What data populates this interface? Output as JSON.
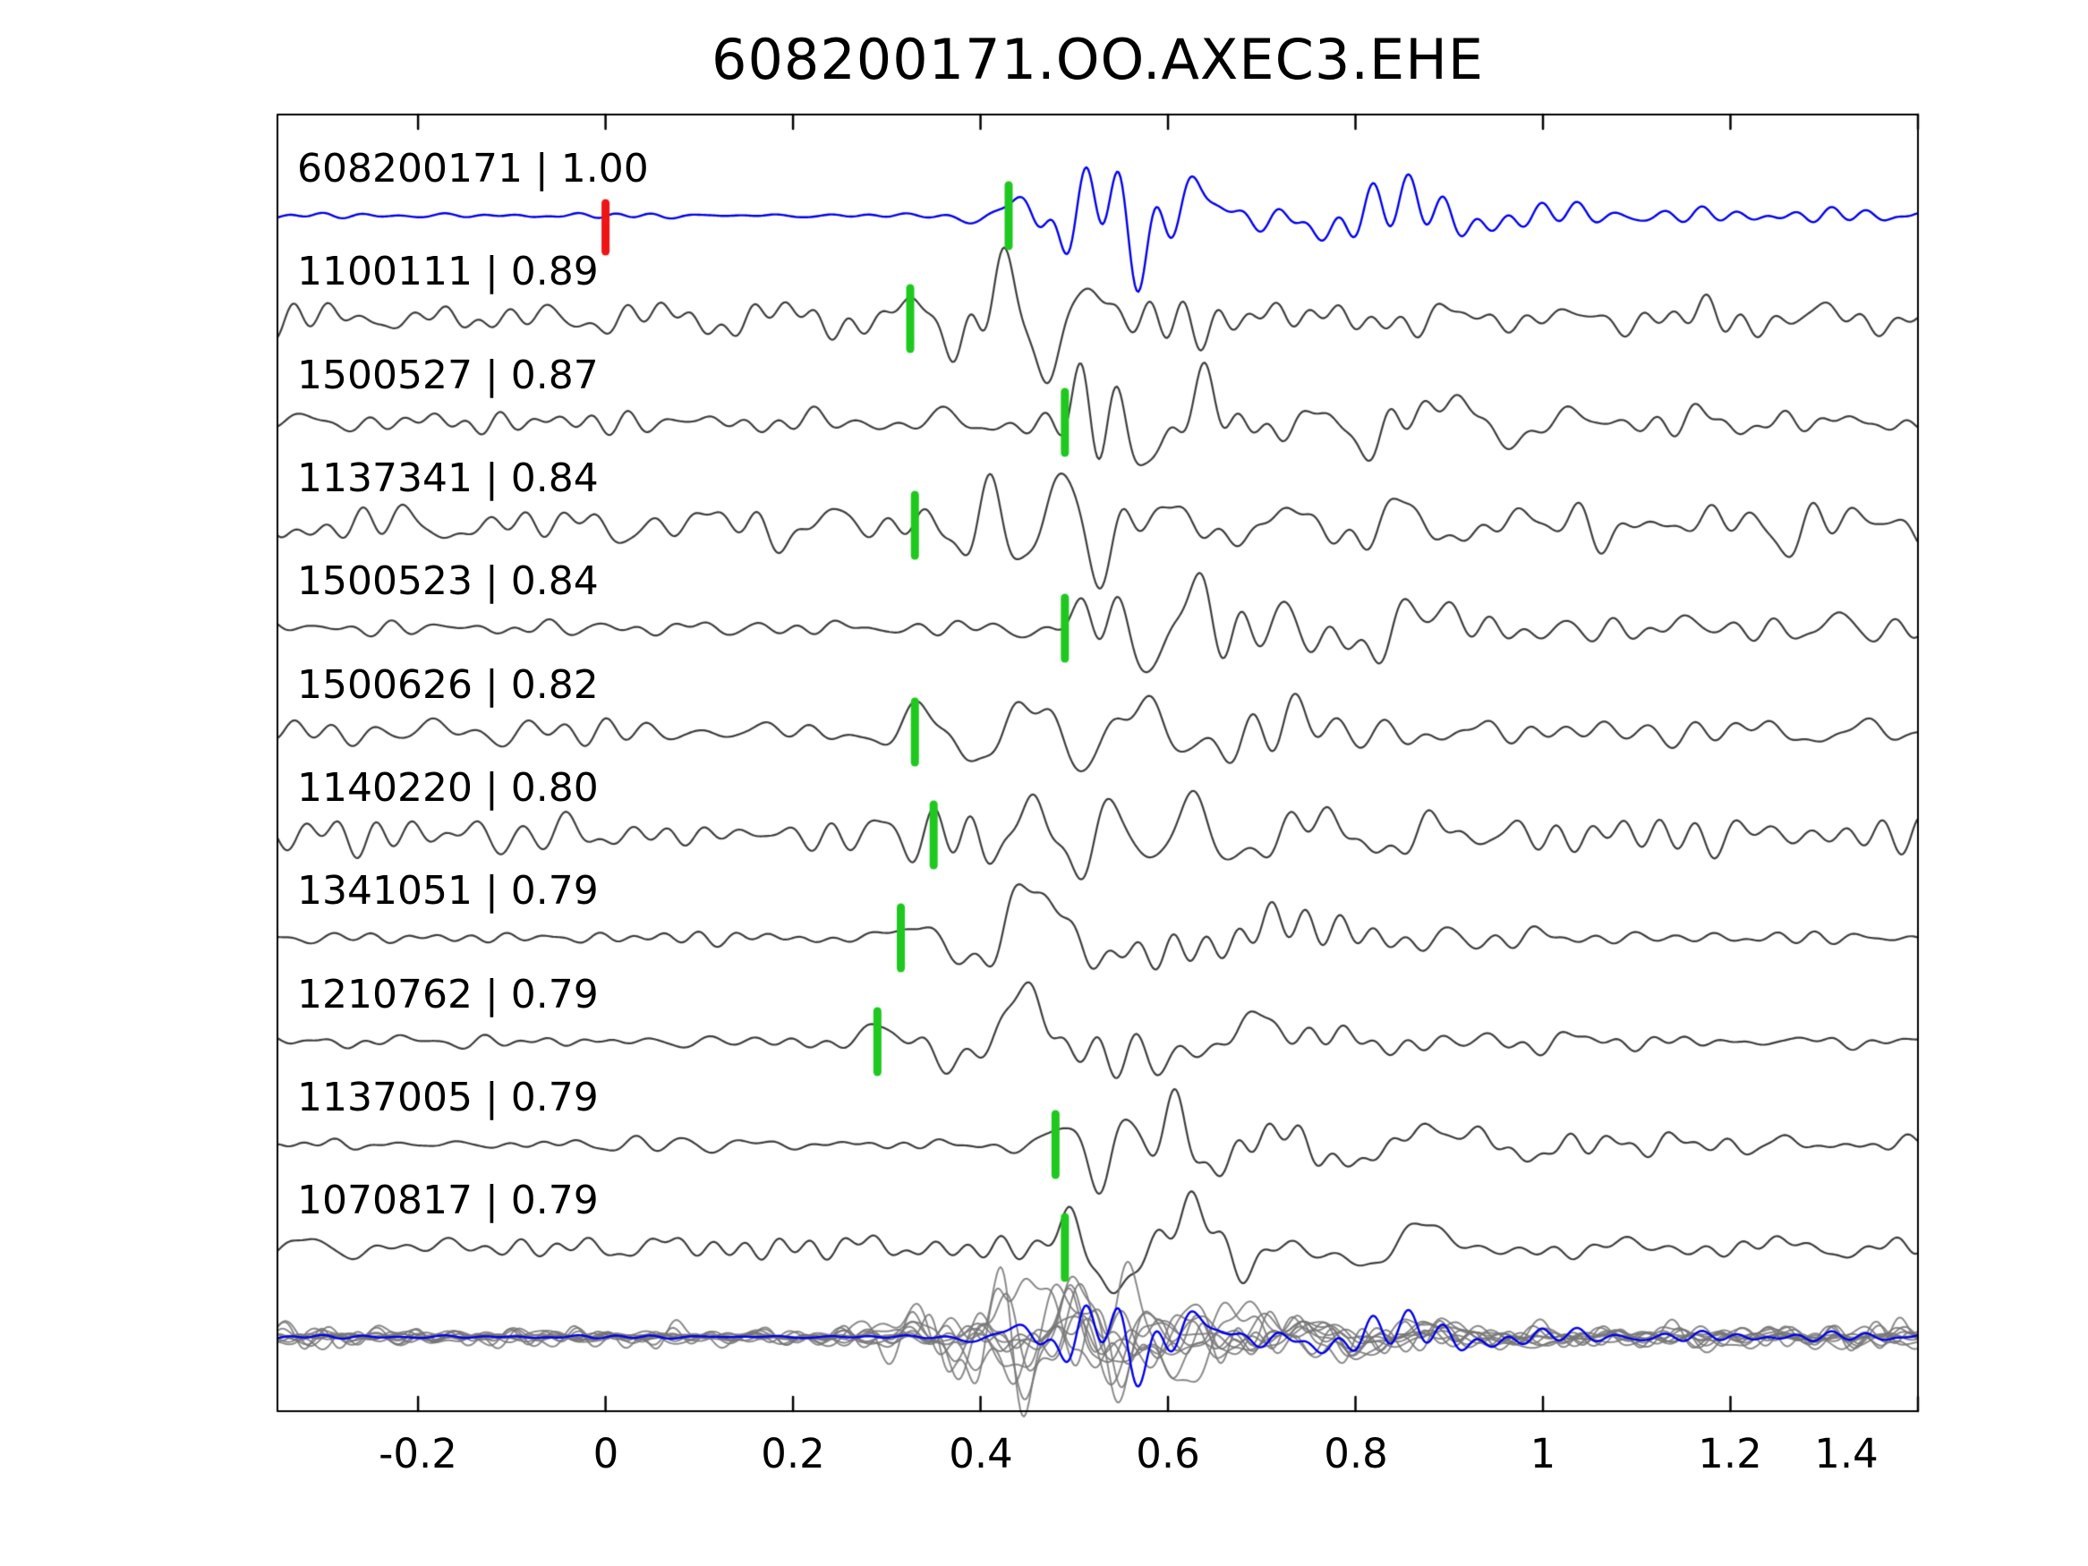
{
  "title": "608200171.OO.AXEC3.EHE",
  "chart_data": {
    "type": "line",
    "title": "608200171.OO.AXEC3.EHE",
    "description": "Template-matching waveform comparison: template event 608200171 (blue) over matched detections (dark gray) with cross-correlation coefficients; green bars mark pick times, red bar marks template origin time; bottom row overlays all matched traces (gray) with the template (blue).",
    "xlim": [
      -0.35,
      1.4
    ],
    "x_ticks": [
      -0.2,
      0,
      0.2,
      0.4,
      0.6,
      0.8,
      1,
      1.2,
      1.4
    ],
    "x_tick_labels": [
      "-0.2",
      "0",
      "0.2",
      "0.4",
      "0.6",
      "0.8",
      "1",
      "1.2",
      "1.4"
    ],
    "grid": false,
    "legend": "none",
    "colors": {
      "template_trace": "#0000ee",
      "match_trace": "#3d3d3d",
      "overlay_trace": "#787878",
      "pick_marker": "#1fc81f",
      "origin_marker": "#ee1515",
      "axes": "#000000",
      "text": "#000000",
      "background": "#ffffff"
    },
    "traces": [
      {
        "id": "608200171",
        "cc": 1.0,
        "label": "608200171 | 1.00",
        "role": "template",
        "pick_x": 0.43,
        "origin_x": 0.0,
        "arrival_x": 0.46,
        "pre_noise": 0.06,
        "tail": 0.22,
        "freq": 9
      },
      {
        "id": "1100111",
        "cc": 0.89,
        "label": "1100111 | 0.89",
        "role": "match",
        "pick_x": 0.325,
        "arrival_x": 0.36,
        "pre_noise": 0.42,
        "tail": 0.45,
        "freq": 11
      },
      {
        "id": "1500527",
        "cc": 0.87,
        "label": "1500527 | 0.87",
        "role": "match",
        "pick_x": 0.49,
        "arrival_x": 0.5,
        "pre_noise": 0.3,
        "tail": 0.32,
        "freq": 9
      },
      {
        "id": "1137341",
        "cc": 0.84,
        "label": "1137341 | 0.84",
        "role": "match",
        "pick_x": 0.33,
        "arrival_x": 0.36,
        "pre_noise": 0.5,
        "tail": 0.55,
        "freq": 13
      },
      {
        "id": "1500523",
        "cc": 0.84,
        "label": "1500523 | 0.84",
        "role": "match",
        "pick_x": 0.49,
        "arrival_x": 0.51,
        "pre_noise": 0.22,
        "tail": 0.35,
        "freq": 8
      },
      {
        "id": "1500626",
        "cc": 0.82,
        "label": "1500626 | 0.82",
        "role": "match",
        "pick_x": 0.33,
        "arrival_x": 0.37,
        "pre_noise": 0.35,
        "tail": 0.4,
        "freq": 9
      },
      {
        "id": "1140220",
        "cc": 0.8,
        "label": "1140220 | 0.80",
        "role": "match",
        "pick_x": 0.35,
        "arrival_x": 0.38,
        "pre_noise": 0.45,
        "tail": 0.5,
        "freq": 12
      },
      {
        "id": "1341051",
        "cc": 0.79,
        "label": "1341051 | 0.79",
        "role": "match",
        "pick_x": 0.315,
        "arrival_x": 0.33,
        "pre_noise": 0.13,
        "tail": 0.12,
        "freq": 5.5
      },
      {
        "id": "1210762",
        "cc": 0.79,
        "label": "1210762 | 0.79",
        "role": "match",
        "pick_x": 0.29,
        "arrival_x": 0.31,
        "pre_noise": 0.16,
        "tail": 0.14,
        "freq": 5.5
      },
      {
        "id": "1137005",
        "cc": 0.79,
        "label": "1137005 | 0.79",
        "role": "match",
        "pick_x": 0.48,
        "arrival_x": 0.5,
        "pre_noise": 0.2,
        "tail": 0.3,
        "freq": 8
      },
      {
        "id": "1070817",
        "cc": 0.79,
        "label": "1070817 | 0.79",
        "role": "match",
        "pick_x": 0.49,
        "arrival_x": 0.5,
        "pre_noise": 0.28,
        "tail": 0.3,
        "freq": 8
      }
    ],
    "overlay_row": {
      "n_gray_traces": 10,
      "has_template_overlay": true,
      "gray_color": "#787878",
      "template_color": "#0000ee"
    }
  }
}
